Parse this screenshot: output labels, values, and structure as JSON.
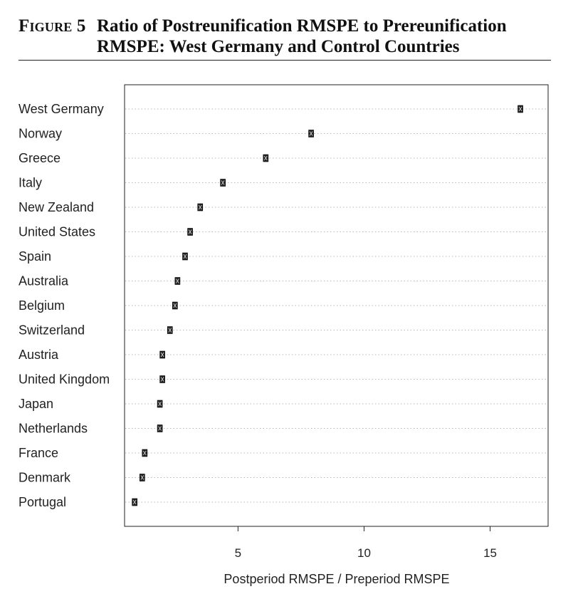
{
  "figure": {
    "label": "Figure 5",
    "title": "Ratio of Postreunification RMSPE to Prereunification RMSPE: West Germany and Control Countries"
  },
  "chart_data": {
    "type": "scatter",
    "subtype": "dot-plot",
    "title": "",
    "xlabel": "Postperiod RMSPE / Preperiod RMSPE",
    "ylabel": "",
    "xlim": [
      0.5,
      17.3
    ],
    "xticks": [
      5,
      10,
      15
    ],
    "grid": "horizontal dotted lines per category",
    "categories": [
      "West Germany",
      "Norway",
      "Greece",
      "Italy",
      "New Zealand",
      "United States",
      "Spain",
      "Australia",
      "Belgium",
      "Switzerland",
      "Austria",
      "United Kingdom",
      "Japan",
      "Netherlands",
      "France",
      "Denmark",
      "Portugal"
    ],
    "values": [
      16.2,
      7.9,
      6.1,
      4.4,
      3.5,
      3.1,
      2.9,
      2.6,
      2.5,
      2.3,
      2.0,
      2.0,
      1.9,
      1.9,
      1.3,
      1.2,
      0.9
    ],
    "marker_color": "#222222"
  }
}
